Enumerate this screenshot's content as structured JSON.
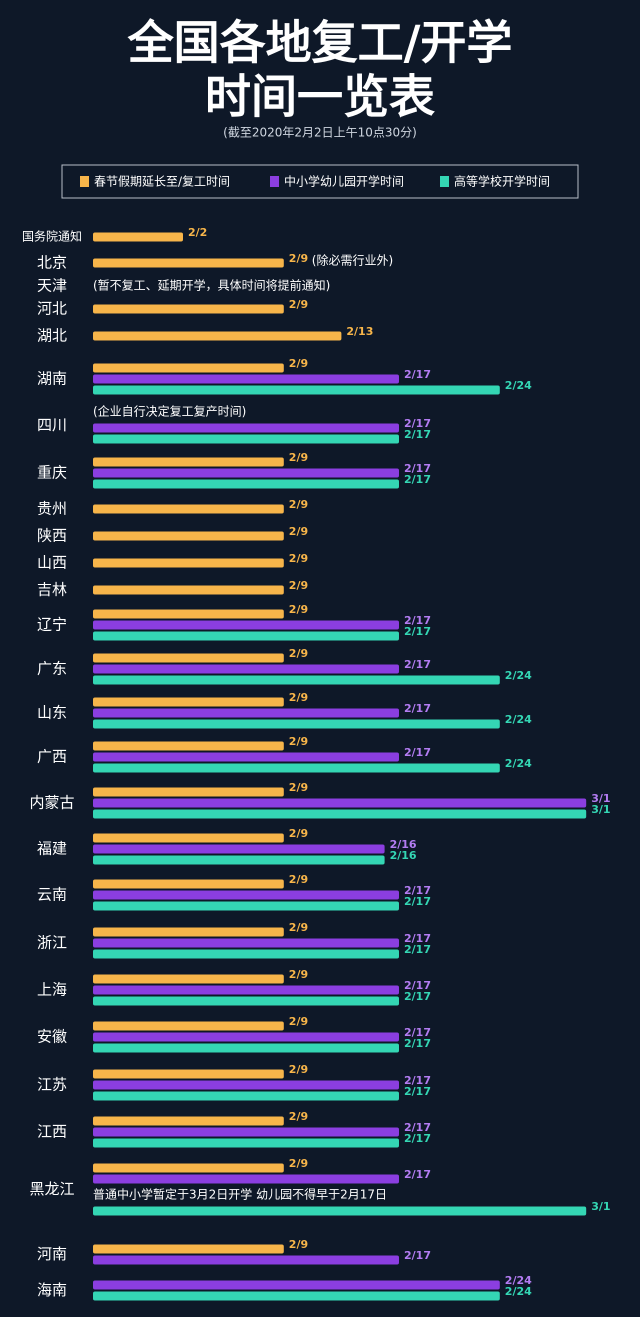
{
  "chart_data": {
    "type": "bar",
    "title": "全国各地复工/开学",
    "title_line2": "时间一览表",
    "subtitle": "(截至2020年2月2日上午10点30分)",
    "categories": [
      "国务院通知",
      "北京",
      "天津",
      "河北",
      "湖北",
      "湖南",
      "四川",
      "重庆",
      "贵州",
      "陕西",
      "山西",
      "吉林",
      "辽宁",
      "广东",
      "山东",
      "广西",
      "内蒙古",
      "福建",
      "云南",
      "浙江",
      "上海",
      "安徽",
      "江苏",
      "江西",
      "黑龙江",
      "河南",
      "海南"
    ],
    "notes": [
      null,
      "(除必需行业外)",
      "(暂不复工、延期开学，具体时间将提前通知)",
      null,
      null,
      null,
      "(企业自行决定复工复产时间)",
      null,
      null,
      null,
      null,
      null,
      null,
      null,
      null,
      null,
      null,
      null,
      null,
      null,
      null,
      null,
      null,
      null,
      "普通中小学暂定于3月2日开学 幼儿园不得早于2月17日",
      null,
      null
    ],
    "series": [
      {
        "name": "春节假期延长至/复工时间",
        "color": "#f7b54a",
        "values": [
          "2/2",
          "2/9",
          null,
          "2/9",
          "2/13",
          "2/9",
          null,
          "2/9",
          "2/9",
          "2/9",
          "2/9",
          "2/9",
          "2/9",
          "2/9",
          "2/9",
          "2/9",
          "2/9",
          "2/9",
          "2/9",
          "2/9",
          "2/9",
          "2/9",
          "2/9",
          "2/9",
          "2/9",
          "2/9",
          null
        ]
      },
      {
        "name": "中小学幼儿园开学时间",
        "color": "#8b3ee0",
        "values": [
          null,
          null,
          null,
          null,
          null,
          "2/17",
          "2/17",
          "2/17",
          null,
          null,
          null,
          null,
          "2/17",
          "2/17",
          "2/17",
          "2/17",
          "3/1",
          "2/16",
          "2/17",
          "2/17",
          "2/17",
          "2/17",
          "2/17",
          "2/17",
          "2/17",
          "2/17",
          "2/24"
        ]
      },
      {
        "name": "高等学校开学时间",
        "color": "#34d6b4",
        "values": [
          null,
          null,
          null,
          null,
          null,
          "2/24",
          "2/17",
          "2/17",
          null,
          null,
          null,
          null,
          "2/17",
          "2/24",
          "2/24",
          "2/24",
          "3/1",
          "2/16",
          "2/17",
          "2/17",
          "2/17",
          "2/17",
          "2/17",
          "2/17",
          "3/1",
          null,
          "2/24"
        ]
      }
    ]
  }
}
